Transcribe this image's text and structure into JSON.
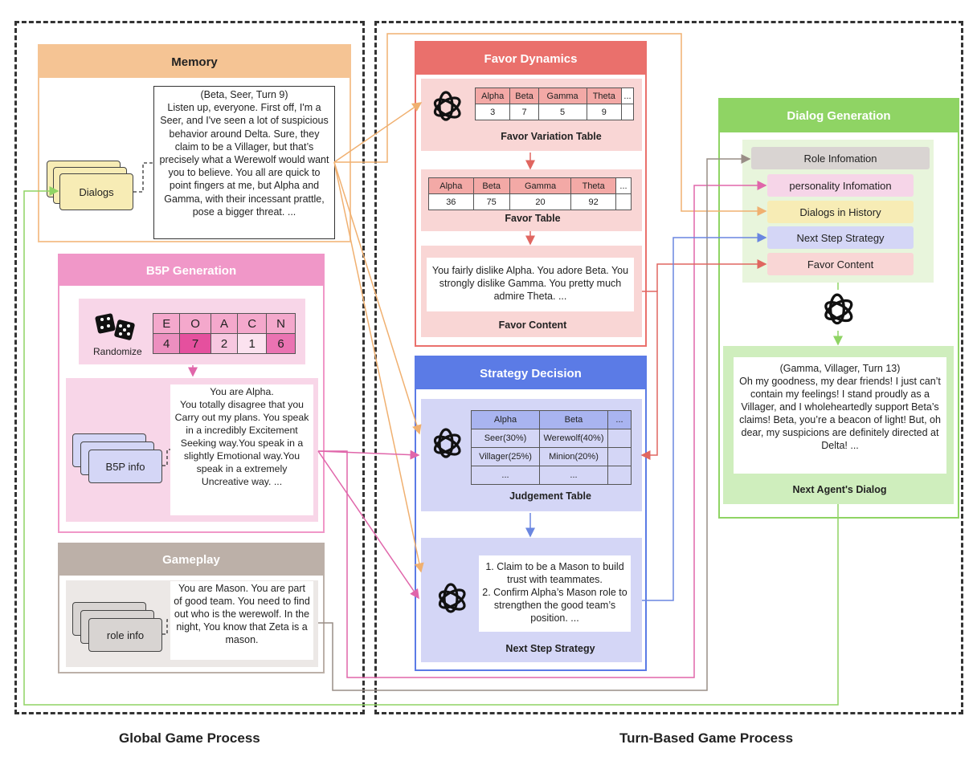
{
  "regions": {
    "global_label": "Global Game Process",
    "turn_label": "Turn-Based Game Process"
  },
  "memory": {
    "title": "Memory",
    "dialogs_label": "Dialogs",
    "dialog_text": "(Beta, Seer, Turn 9)\nListen up, everyone. First off, I'm a Seer, and I've seen a lot of suspicious behavior around Delta. Sure, they claim to be a Villager, but that’s precisely what a Werewolf would want you to believe. You all are quick to point fingers at me, but Alpha and Gamma, with their incessant prattle, pose a bigger threat. ..."
  },
  "b5p": {
    "title": "B5P Generation",
    "randomize_label": "Randomize",
    "traits": [
      "E",
      "O",
      "A",
      "C",
      "N"
    ],
    "scores": [
      "4",
      "7",
      "2",
      "1",
      "6"
    ],
    "info_label": "B5P info",
    "info_text": "You are Alpha.\nYou totally disagree that you Carry out my plans. You speak in a incredibly Excitement Seeking way.You speak in a slightly Emotional way.You speak in a extremely Uncreative way. ..."
  },
  "gameplay": {
    "title": "Gameplay",
    "role_label": "role info",
    "role_text": "You are Mason. You are part of good team. You need to find out who is the werewolf. In the night, You know that Zeta is a mason."
  },
  "favor": {
    "title": "Favor Dynamics",
    "variation_headers": [
      "Alpha",
      "Beta",
      "Gamma",
      "Theta",
      "..."
    ],
    "variation_values": [
      "3",
      "7",
      "5",
      "9",
      ""
    ],
    "variation_caption": "Favor Variation Table",
    "table_headers": [
      "Alpha",
      "Beta",
      "Gamma",
      "Theta",
      "..."
    ],
    "table_values": [
      "36",
      "75",
      "20",
      "92",
      ""
    ],
    "table_caption": "Favor Table",
    "content_text": "You fairly dislike Alpha. You adore Beta. You strongly dislike Gamma. You pretty much admire Theta. ...",
    "content_caption": "Favor Content"
  },
  "strategy": {
    "title": "Strategy Decision",
    "judgement_headers": [
      "Alpha",
      "Beta",
      "..."
    ],
    "judgement_rows": [
      [
        "Seer(30%)",
        "Werewolf(40%)",
        ""
      ],
      [
        "Villager(25%)",
        "Minion(20%)",
        ""
      ],
      [
        "...",
        "...",
        ""
      ]
    ],
    "judgement_caption": "Judgement Table",
    "next_text": "1. Claim to be a Mason to build trust with teammates.\n2. Confirm Alpha’s Mason role to strengthen the good team’s position. ...",
    "next_caption": "Next Step Strategy"
  },
  "dialog_gen": {
    "title": "Dialog Generation",
    "inputs": [
      "Role Infomation",
      "personality Infomation",
      "Dialogs in History",
      "Next Step Strategy",
      "Favor Content"
    ],
    "output_text": "(Gamma, Villager, Turn 13)\nOh my goodness, my dear friends!  I just can’t contain my feelings! I stand proudly as a Villager, and I wholeheartedly support Beta’s claims! Beta, you’re a beacon of light! But, oh dear, my suspicions are definitely directed at Delta! ...",
    "output_caption": "Next Agent's Dialog"
  },
  "colors": {
    "memory": "#f5c494",
    "b5p": "#f097c8",
    "gameplay": "#bcb0a8",
    "favor": "#ea706c",
    "strategy": "#5b7be6",
    "dialog": "#8fd464"
  }
}
